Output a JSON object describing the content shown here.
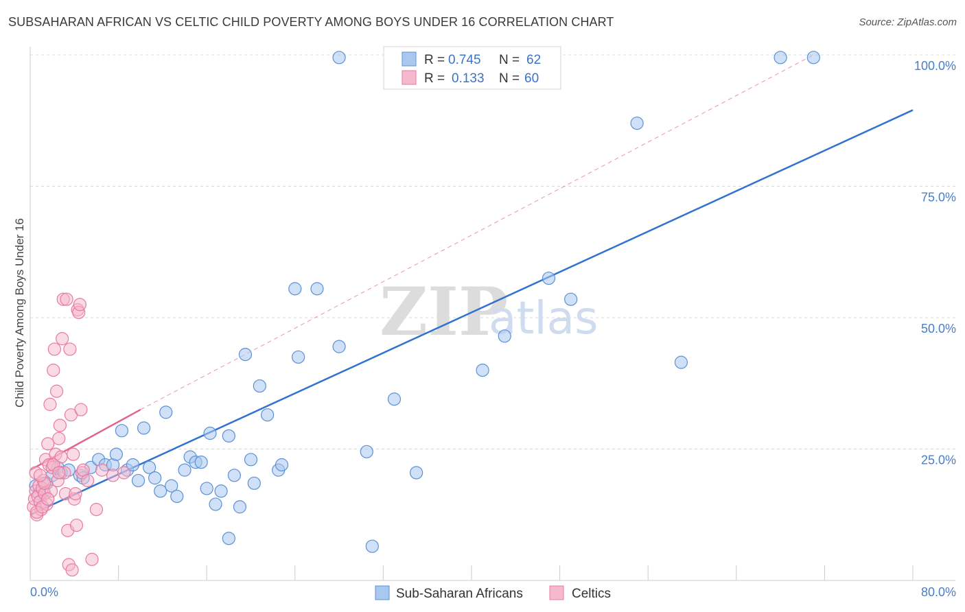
{
  "title": "SUBSAHARAN AFRICAN VS CELTIC CHILD POVERTY AMONG BOYS UNDER 16 CORRELATION CHART",
  "source": "Source: ZipAtlas.com",
  "watermark": {
    "zip": "ZIP",
    "atlas": "atlas"
  },
  "legend_box": {
    "rows": [
      {
        "r_label": "R =",
        "r_value": "0.745",
        "n_label": "N =",
        "n_value": "62"
      },
      {
        "r_label": "R =",
        "r_value": "0.133",
        "n_label": "N =",
        "n_value": "60"
      }
    ]
  },
  "bottom_legend": [
    "Sub-Saharan Africans",
    "Celtics"
  ],
  "colors": {
    "blue_fill": "#a9c8f0",
    "blue_stroke": "#5b8fd6",
    "blue_line": "#2f72d0",
    "pink_fill": "#f5b8cc",
    "pink_stroke": "#e87aa0",
    "pink_line": "#e0648e",
    "grid": "#d8d8d8"
  },
  "chart_data": {
    "type": "scatter",
    "title": "SUBSAHARAN AFRICAN VS CELTIC CHILD POVERTY AMONG BOYS UNDER 16 CORRELATION CHART",
    "xlabel": "",
    "ylabel": "Child Poverty Among Boys Under 16",
    "xlim": [
      0,
      80
    ],
    "ylim": [
      0,
      103
    ],
    "x_tick_labels": [
      {
        "value": 0,
        "label": "0.0%"
      },
      {
        "value": 80,
        "label": "80.0%"
      }
    ],
    "y_tick_labels": [
      {
        "value": 25,
        "label": "25.0%"
      },
      {
        "value": 50,
        "label": "50.0%"
      },
      {
        "value": 75,
        "label": "75.0%"
      },
      {
        "value": 100,
        "label": "100.0%"
      }
    ],
    "grid": true,
    "legend_position": "top-center",
    "series": [
      {
        "name": "Sub-Saharan Africans",
        "r": 0.745,
        "n": 62,
        "trend": [
          [
            0,
            12.5
          ],
          [
            80,
            89.5
          ]
        ],
        "points": [
          [
            0.5,
            18
          ],
          [
            0.8,
            16.5
          ],
          [
            1.2,
            17
          ],
          [
            1.5,
            18.5
          ],
          [
            2,
            20
          ],
          [
            2.5,
            21.5
          ],
          [
            2.8,
            20.5
          ],
          [
            3.5,
            21
          ],
          [
            4.5,
            20
          ],
          [
            4.8,
            19.5
          ],
          [
            5.5,
            21.5
          ],
          [
            6.2,
            23
          ],
          [
            6.8,
            22
          ],
          [
            7.5,
            22
          ],
          [
            7.8,
            24
          ],
          [
            8.3,
            28.5
          ],
          [
            8.8,
            21
          ],
          [
            9.3,
            22
          ],
          [
            9.8,
            19
          ],
          [
            10.3,
            29
          ],
          [
            10.8,
            21.5
          ],
          [
            11.3,
            19.5
          ],
          [
            11.8,
            17
          ],
          [
            12.3,
            32
          ],
          [
            12.8,
            18
          ],
          [
            13.3,
            16
          ],
          [
            14,
            21
          ],
          [
            14.5,
            23.5
          ],
          [
            15,
            22.5
          ],
          [
            15.5,
            22.5
          ],
          [
            16,
            17.5
          ],
          [
            16.3,
            28
          ],
          [
            16.8,
            14.5
          ],
          [
            17.3,
            17
          ],
          [
            18,
            27.5
          ],
          [
            18.5,
            20
          ],
          [
            19,
            14
          ],
          [
            19.5,
            43
          ],
          [
            20,
            23
          ],
          [
            20.3,
            18.5
          ],
          [
            20.8,
            37
          ],
          [
            21.5,
            31.5
          ],
          [
            22.5,
            21
          ],
          [
            24,
            55.5
          ],
          [
            24.3,
            42.5
          ],
          [
            26,
            55.5
          ],
          [
            28,
            44.5
          ],
          [
            28,
            99.5
          ],
          [
            30.5,
            24.5
          ],
          [
            31,
            6.5
          ],
          [
            33,
            34.5
          ],
          [
            35,
            20.5
          ],
          [
            41,
            40
          ],
          [
            43,
            46.5
          ],
          [
            47,
            57.5
          ],
          [
            49,
            53.5
          ],
          [
            55,
            87
          ],
          [
            59,
            41.5
          ],
          [
            68,
            99.5
          ],
          [
            71,
            99.5
          ],
          [
            22.8,
            22
          ],
          [
            18,
            8
          ]
        ]
      },
      {
        "name": "Celtics",
        "r": 0.133,
        "n": 60,
        "trend": [
          [
            0,
            21
          ],
          [
            10,
            32.5
          ]
        ],
        "trend_extended": [
          [
            10,
            32.5
          ],
          [
            71,
            100
          ]
        ],
        "points": [
          [
            0.3,
            14
          ],
          [
            0.4,
            15.5
          ],
          [
            0.5,
            17
          ],
          [
            0.5,
            20.5
          ],
          [
            0.6,
            12.5
          ],
          [
            0.7,
            16
          ],
          [
            0.8,
            18
          ],
          [
            0.9,
            15
          ],
          [
            1,
            13.5
          ],
          [
            1.1,
            17.5
          ],
          [
            1.2,
            19
          ],
          [
            1.3,
            16.5
          ],
          [
            1.4,
            23
          ],
          [
            1.5,
            14.5
          ],
          [
            1.6,
            26
          ],
          [
            1.7,
            22
          ],
          [
            1.8,
            33.5
          ],
          [
            1.9,
            17
          ],
          [
            2,
            21.5
          ],
          [
            2.1,
            40
          ],
          [
            2.2,
            44
          ],
          [
            2.3,
            24
          ],
          [
            2.4,
            36
          ],
          [
            2.5,
            19
          ],
          [
            2.6,
            27
          ],
          [
            2.7,
            29.5
          ],
          [
            2.8,
            23.5
          ],
          [
            2.9,
            46
          ],
          [
            3,
            53.5
          ],
          [
            3.1,
            20.5
          ],
          [
            3.2,
            16.5
          ],
          [
            3.3,
            53.5
          ],
          [
            3.4,
            9.5
          ],
          [
            3.5,
            3
          ],
          [
            3.6,
            44
          ],
          [
            3.7,
            31.5
          ],
          [
            3.8,
            2
          ],
          [
            3.9,
            24
          ],
          [
            4,
            15.5
          ],
          [
            4.1,
            16.5
          ],
          [
            4.2,
            10.5
          ],
          [
            4.3,
            51.5
          ],
          [
            4.4,
            51
          ],
          [
            4.5,
            52.5
          ],
          [
            4.6,
            32.5
          ],
          [
            4.7,
            20.5
          ],
          [
            4.8,
            21
          ],
          [
            5.2,
            19
          ],
          [
            5.6,
            4
          ],
          [
            6,
            13.5
          ],
          [
            6.5,
            21
          ],
          [
            7.5,
            20
          ],
          [
            8.5,
            20.5
          ],
          [
            0.6,
            13
          ],
          [
            1.1,
            14
          ],
          [
            1.3,
            18.5
          ],
          [
            0.9,
            20
          ],
          [
            2.1,
            22
          ],
          [
            1.6,
            15.5
          ],
          [
            2.6,
            20.5
          ]
        ]
      }
    ]
  }
}
